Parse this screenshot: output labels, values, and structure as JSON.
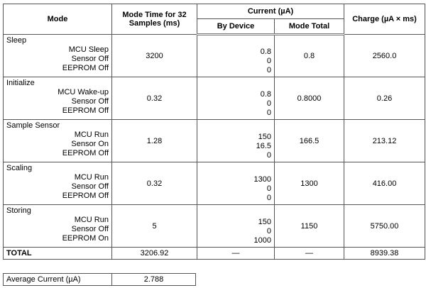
{
  "header": {
    "mode": "Mode",
    "mode_time": "Mode Time for 32 Samples (ms)",
    "current": "Current (µA)",
    "by_device": "By Device",
    "mode_total": "Mode Total",
    "charge": "Charge (µA × ms)"
  },
  "rows": [
    {
      "mode": "Sleep",
      "devices": [
        "MCU Sleep",
        "Sensor Off",
        "EEPROM Off"
      ],
      "time": "3200",
      "by_device": [
        "0.8",
        "0",
        "0"
      ],
      "mode_total": "0.8",
      "charge": "2560.0"
    },
    {
      "mode": "Initialize",
      "devices": [
        "MCU Wake-up",
        "Sensor Off",
        "EEPROM Off"
      ],
      "time": "0.32",
      "by_device": [
        "0.8",
        "0",
        "0"
      ],
      "mode_total": "0.8000",
      "charge": "0.26"
    },
    {
      "mode": "Sample Sensor",
      "devices": [
        "MCU Run",
        "Sensor On",
        "EEPROM Off"
      ],
      "time": "1.28",
      "by_device": [
        "150",
        "16.5",
        "0"
      ],
      "mode_total": "166.5",
      "charge": "213.12"
    },
    {
      "mode": "Scaling",
      "devices": [
        "MCU Run",
        "Sensor Off",
        "EEPROM Off"
      ],
      "time": "0.32",
      "by_device": [
        "1300",
        "0",
        "0"
      ],
      "mode_total": "1300",
      "charge": "416.00"
    },
    {
      "mode": "Storing",
      "devices": [
        "MCU Run",
        "Sensor Off",
        "EEPROM On"
      ],
      "time": "5",
      "by_device": [
        "150",
        "0",
        "1000"
      ],
      "mode_total": "1150",
      "charge": "5750.00"
    }
  ],
  "total": {
    "label": "TOTAL",
    "time": "3206.92",
    "by_device": "—",
    "mode_total": "—",
    "charge": "8939.38"
  },
  "average": {
    "label": "Average Current (µA)",
    "value": "2.788"
  }
}
